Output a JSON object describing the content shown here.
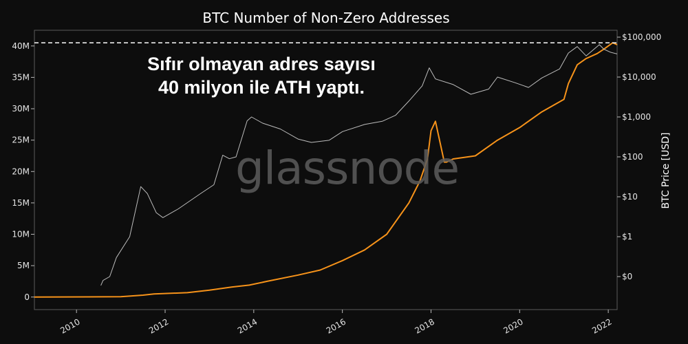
{
  "chart_data": {
    "type": "line",
    "title": "BTC Number of Non-Zero Addresses",
    "annotation": [
      "Sıfır olmayan adres sayısı",
      "40 milyon ile ATH yaptı."
    ],
    "watermark": "glassnode",
    "x_ticks": [
      "2010",
      "2012",
      "2014",
      "2016",
      "2018",
      "2020",
      "2022"
    ],
    "xlim": [
      2009.05,
      2022.2
    ],
    "y_left": {
      "label": "",
      "ticks": [
        "0",
        "5M",
        "10M",
        "15M",
        "20M",
        "25M",
        "30M",
        "35M",
        "40M"
      ],
      "tick_values": [
        0,
        5,
        10,
        15,
        20,
        25,
        30,
        35,
        40
      ],
      "unit": "million",
      "ylim": [
        -2,
        42.5
      ]
    },
    "y_right": {
      "label": "BTC Price [USD]",
      "scale": "log",
      "ticks": [
        "$0",
        "$1",
        "$10",
        "$100",
        "$1,000",
        "$10,000",
        "$100,000"
      ],
      "tick_values": [
        0.1,
        1,
        10,
        100,
        1000,
        10000,
        100000
      ]
    },
    "ath_reference_line": 40.5,
    "series": [
      {
        "name": "Non-Zero Addresses",
        "axis": "left",
        "color": "#f7931a",
        "x": [
          2009.05,
          2011.0,
          2011.5,
          2011.75,
          2012.5,
          2013.0,
          2013.5,
          2013.9,
          2014.3,
          2015.0,
          2015.5,
          2016.0,
          2016.5,
          2017.0,
          2017.5,
          2017.75,
          2017.92,
          2018.0,
          2018.1,
          2018.3,
          2018.35,
          2018.5,
          2019.0,
          2019.5,
          2020.0,
          2020.5,
          2021.0,
          2021.1,
          2021.3,
          2021.5,
          2021.75,
          2021.9,
          2022.0,
          2022.1,
          2022.2
        ],
        "y": [
          0,
          0.05,
          0.3,
          0.5,
          0.7,
          1.1,
          1.6,
          1.9,
          2.5,
          3.5,
          4.3,
          5.8,
          7.5,
          10.0,
          15.0,
          18.5,
          22.0,
          26.5,
          28.0,
          21.5,
          21.5,
          22.0,
          22.5,
          25.0,
          27.0,
          29.5,
          31.5,
          34.0,
          37.0,
          38.0,
          38.8,
          39.5,
          40.0,
          40.5,
          40.2
        ]
      },
      {
        "name": "BTC Price",
        "axis": "right",
        "color": "#bdbdbd",
        "x": [
          2010.55,
          2010.6,
          2010.75,
          2010.9,
          2011.2,
          2011.45,
          2011.6,
          2011.8,
          2011.95,
          2012.3,
          2012.8,
          2013.1,
          2013.3,
          2013.45,
          2013.6,
          2013.85,
          2013.95,
          2014.2,
          2014.6,
          2015.0,
          2015.3,
          2015.7,
          2016.0,
          2016.5,
          2016.9,
          2017.2,
          2017.5,
          2017.8,
          2017.96,
          2018.1,
          2018.5,
          2018.9,
          2019.3,
          2019.5,
          2019.9,
          2020.2,
          2020.5,
          2020.9,
          2021.1,
          2021.3,
          2021.5,
          2021.8,
          2021.9,
          2022.05,
          2022.2
        ],
        "y": [
          0.06,
          0.08,
          0.1,
          0.3,
          1.0,
          18.0,
          12.0,
          4.0,
          3.0,
          5.0,
          12.0,
          20.0,
          110.0,
          90.0,
          100.0,
          800.0,
          1000.0,
          700.0,
          500.0,
          280.0,
          230.0,
          260.0,
          430.0,
          650.0,
          780.0,
          1100.0,
          2500.0,
          6000.0,
          17000.0,
          9000.0,
          6500.0,
          3700.0,
          5000.0,
          10000.0,
          7200.0,
          5500.0,
          9500.0,
          16000.0,
          40000.0,
          58000.0,
          34000.0,
          65000.0,
          50000.0,
          42000.0,
          38000.0
        ]
      }
    ]
  }
}
